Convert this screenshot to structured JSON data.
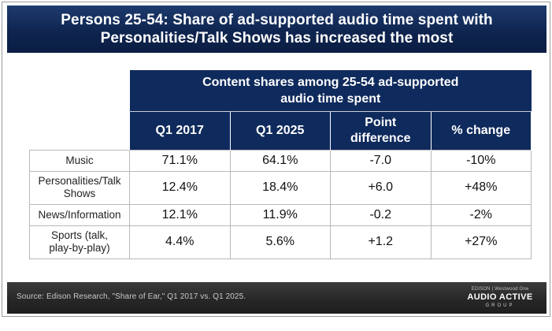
{
  "header": {
    "title_line1": "Persons 25-54: Share of ad-supported audio time spent with",
    "title_line2": "Personalities/Talk Shows has increased the most"
  },
  "table": {
    "group_header_line1": "Content shares among 25-54 ad-supported",
    "group_header_line2": "audio time spent",
    "columns": [
      {
        "line1": "Q1 2017",
        "line2": ""
      },
      {
        "line1": "Q1 2025",
        "line2": ""
      },
      {
        "line1": "Point",
        "line2": "difference"
      },
      {
        "line1": "% change",
        "line2": ""
      }
    ],
    "rows": [
      {
        "label_line1": "Music",
        "label_line2": "",
        "q1_2017": "71.1%",
        "q1_2025": "64.1%",
        "point_difference": "-7.0",
        "pct_change": "-10%"
      },
      {
        "label_line1": "Personalities/Talk",
        "label_line2": "Shows",
        "q1_2017": "12.4%",
        "q1_2025": "18.4%",
        "point_difference": "+6.0",
        "pct_change": "+48%"
      },
      {
        "label_line1": "News/Information",
        "label_line2": "",
        "q1_2017": "12.1%",
        "q1_2025": "11.9%",
        "point_difference": "-0.2",
        "pct_change": "-2%"
      },
      {
        "label_line1": "Sports (talk,",
        "label_line2": "play-by-play)",
        "q1_2017": "4.4%",
        "q1_2025": "5.6%",
        "point_difference": "+1.2",
        "pct_change": "+27%"
      }
    ]
  },
  "footer": {
    "source": "Source: Edison Research, \"Share of Ear,\" Q1 2017 vs. Q1 2025.",
    "logo_partners": "EDISON | Westwood One",
    "logo_brand": "AUDIO ACTIVE",
    "logo_group": "GROUP"
  },
  "colors": {
    "header_bg": "#0f2550",
    "table_header_bg": "#0f2a5c",
    "footer_bg": "#262626"
  }
}
